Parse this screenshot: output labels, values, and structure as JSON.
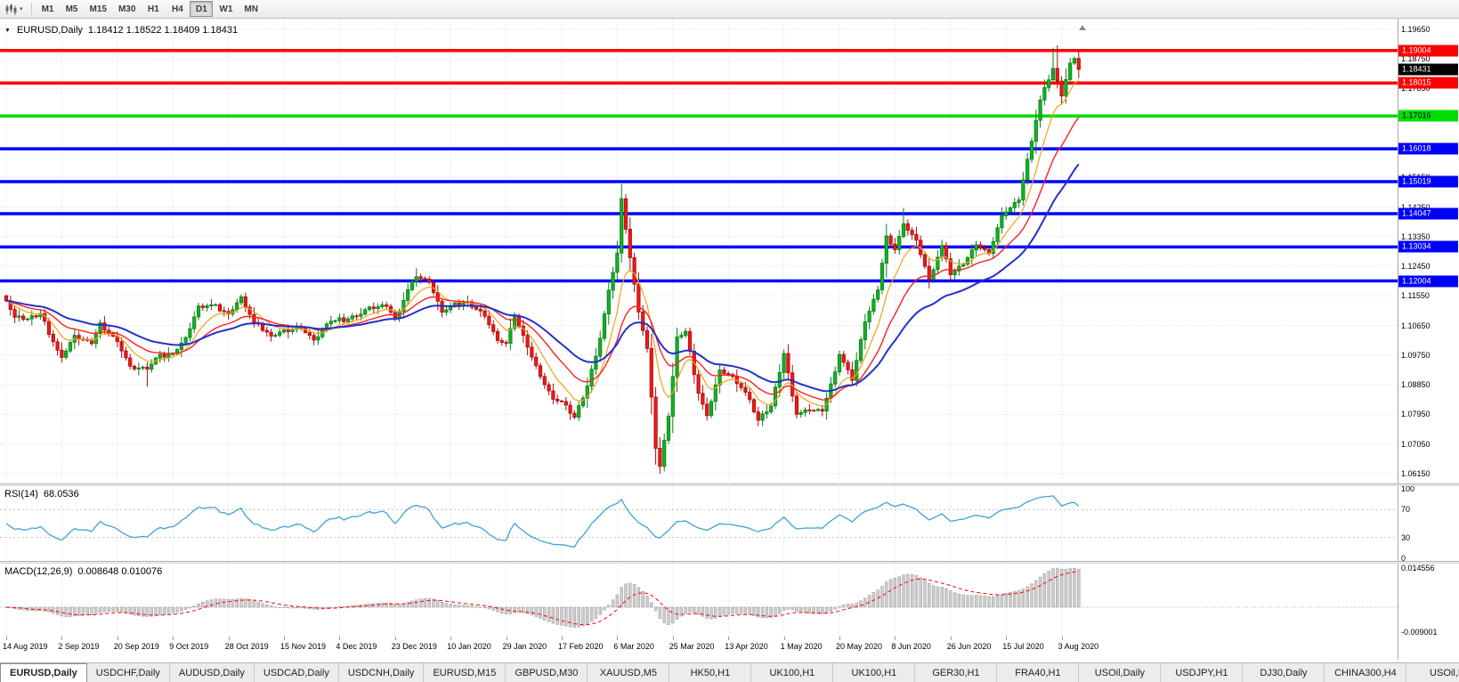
{
  "colors": {
    "up_candle": "#12b224",
    "up_candle_border": "#0a7d18",
    "down_candle": "#f01818",
    "down_candle_border": "#a80d0d",
    "grid": "#dcdcdc",
    "rsi_line": "#42a0d8",
    "rsi_level": "#c0c0c0",
    "macd_histogram": "#cccccc",
    "macd_histogram_border": "#8f8f8f",
    "macd_signal": "#ff0000"
  },
  "toolbar": {
    "timeframes": [
      "M1",
      "M5",
      "M15",
      "M30",
      "H1",
      "H4",
      "D1",
      "W1",
      "MN"
    ],
    "active": "D1",
    "dropdown_icon": "▾"
  },
  "main_chart": {
    "collapse_icon": "▼",
    "symbol_label": "EURUSD,Daily",
    "ohlc_label": "1.18412 1.18522 1.18409 1.18431"
  },
  "rsi_panel": {
    "name": "RSI(14)",
    "value": "68.0536",
    "axis_labels": [
      "100",
      "70",
      "30",
      "0"
    ],
    "axis_values": [
      100,
      70,
      30,
      0
    ],
    "level_lines": [
      70,
      30
    ]
  },
  "macd_panel": {
    "name": "MACD(12,26,9)",
    "values": "0.008648 0.010076",
    "axis_top": "0.014556",
    "axis_bottom": "-0.009001"
  },
  "tabs": [
    "EURUSD,Daily",
    "USDCHF,Daily",
    "AUDUSD,Daily",
    "USDCAD,Daily",
    "USDCNH,Daily",
    "EURUSD,M15",
    "GBPUSD,M30",
    "XAUUSD,M5",
    "HK50,H1",
    "UK100,H1",
    "UK100,H1",
    "GER30,H1",
    "FRA40,H1",
    "USOil,Daily",
    "USDJPY,H1",
    "DJ30,Daily",
    "CHINA300,H4",
    "USOil,D"
  ],
  "active_tab_index": 0,
  "chart_data": {
    "type": "candlestick",
    "symbol": "EURUSD",
    "period": "Daily",
    "bar_count": 252,
    "price_axis": {
      "top_label": 1.1965,
      "step": 0.009,
      "label_count": 16,
      "pane_max": 1.1997,
      "pane_min": 1.0585
    },
    "x_labels": [
      "14 Aug 2019",
      "2 Sep 2019",
      "20 Sep 2019",
      "9 Oct 2019",
      "28 Oct 2019",
      "15 Nov 2019",
      "4 Dec 2019",
      "23 Dec 2019",
      "10 Jan 2020",
      "29 Jan 2020",
      "17 Feb 2020",
      "6 Mar 2020",
      "25 Mar 2020",
      "13 Apr 2020",
      "1 May 2020",
      "20 May 2020",
      "8 Jun 2020",
      "26 Jun 2020",
      "15 Jul 2020",
      "3 Aug 2020"
    ],
    "x_label_bars": [
      0,
      13,
      26,
      39,
      52,
      65,
      78,
      91,
      104,
      117,
      130,
      143,
      156,
      169,
      182,
      195,
      208,
      221,
      234,
      247
    ],
    "close_anchors": [
      [
        0,
        1.114
      ],
      [
        2,
        1.109
      ],
      [
        5,
        1.1085
      ],
      [
        8,
        1.1101
      ],
      [
        12,
        1.099
      ],
      [
        13,
        1.0968
      ],
      [
        16,
        1.1035
      ],
      [
        20,
        1.101
      ],
      [
        22,
        1.1073
      ],
      [
        26,
        1.1016
      ],
      [
        29,
        1.0941
      ],
      [
        33,
        1.0932
      ],
      [
        35,
        1.0966
      ],
      [
        39,
        1.0979
      ],
      [
        42,
        1.1028
      ],
      [
        45,
        1.1124
      ],
      [
        48,
        1.1128
      ],
      [
        52,
        1.11
      ],
      [
        55,
        1.1152
      ],
      [
        58,
        1.1074
      ],
      [
        62,
        1.1033
      ],
      [
        65,
        1.1051
      ],
      [
        69,
        1.1058
      ],
      [
        72,
        1.1021
      ],
      [
        76,
        1.1078
      ],
      [
        82,
        1.1093
      ],
      [
        85,
        1.1121
      ],
      [
        89,
        1.1123
      ],
      [
        91,
        1.1089
      ],
      [
        95,
        1.1199
      ],
      [
        96,
        1.1213
      ],
      [
        99,
        1.1196
      ],
      [
        102,
        1.1105
      ],
      [
        104,
        1.1122
      ],
      [
        108,
        1.1136
      ],
      [
        112,
        1.1093
      ],
      [
        115,
        1.1019
      ],
      [
        117,
        1.1011
      ],
      [
        119,
        1.1094
      ],
      [
        122,
        1.0999
      ],
      [
        125,
        1.091
      ],
      [
        128,
        1.0841
      ],
      [
        130,
        1.0834
      ],
      [
        133,
        1.0786
      ],
      [
        136,
        1.0881
      ],
      [
        139,
        1.1026
      ],
      [
        141,
        1.1172
      ],
      [
        143,
        1.1285
      ],
      [
        144,
        1.145
      ],
      [
        146,
        1.1271
      ],
      [
        148,
        1.1106
      ],
      [
        150,
        1.0995
      ],
      [
        152,
        1.0692
      ],
      [
        153,
        1.0637
      ],
      [
        155,
        1.0789
      ],
      [
        157,
        1.103
      ],
      [
        159,
        1.1047
      ],
      [
        162,
        1.0859
      ],
      [
        164,
        1.0791
      ],
      [
        167,
        1.093
      ],
      [
        170,
        1.091
      ],
      [
        173,
        1.0862
      ],
      [
        176,
        1.0777
      ],
      [
        179,
        1.0821
      ],
      [
        182,
        1.098
      ],
      [
        185,
        1.0795
      ],
      [
        188,
        1.0807
      ],
      [
        191,
        1.0805
      ],
      [
        194,
        1.0924
      ],
      [
        195,
        1.0977
      ],
      [
        198,
        1.0898
      ],
      [
        201,
        1.1076
      ],
      [
        204,
        1.1173
      ],
      [
        206,
        1.1337
      ],
      [
        208,
        1.1295
      ],
      [
        210,
        1.1374
      ],
      [
        213,
        1.1324
      ],
      [
        216,
        1.1206
      ],
      [
        219,
        1.1308
      ],
      [
        221,
        1.1219
      ],
      [
        224,
        1.1251
      ],
      [
        227,
        1.131
      ],
      [
        230,
        1.1284
      ],
      [
        233,
        1.1398
      ],
      [
        234,
        1.141
      ],
      [
        237,
        1.1446
      ],
      [
        239,
        1.157
      ],
      [
        242,
        1.175
      ],
      [
        245,
        1.1846
      ],
      [
        247,
        1.1762
      ],
      [
        249,
        1.1862
      ],
      [
        250,
        1.1876
      ],
      [
        251,
        1.1843
      ]
    ],
    "wick_overrides": [
      [
        33,
        "low",
        1.0879
      ],
      [
        96,
        "high",
        1.1239
      ],
      [
        144,
        "high",
        1.1495
      ],
      [
        153,
        "low",
        1.0636
      ],
      [
        210,
        "high",
        1.1422
      ],
      [
        245,
        "high",
        1.1909
      ],
      [
        246,
        "high",
        1.1916
      ]
    ],
    "horizontal_lines": [
      {
        "price": 1.19004,
        "label": "1.19004",
        "color": "#ff0000",
        "text": "#ffffff"
      },
      {
        "price": 1.18015,
        "label": "1.18015",
        "color": "#ff0000",
        "text": "#ffffff"
      },
      {
        "price": 1.17016,
        "label": "1.17016",
        "color": "#00dd00",
        "text": "#000000"
      },
      {
        "price": 1.16018,
        "label": "1.16018",
        "color": "#0000ff",
        "text": "#ffffff"
      },
      {
        "price": 1.15019,
        "label": "1.15019",
        "color": "#0000ff",
        "text": "#ffffff"
      },
      {
        "price": 1.14047,
        "label": "1.14047",
        "color": "#0000ff",
        "text": "#ffffff"
      },
      {
        "price": 1.13034,
        "label": "1.13034",
        "color": "#0000ff",
        "text": "#ffffff"
      },
      {
        "price": 1.12004,
        "label": "1.12004",
        "color": "#0000ff",
        "text": "#ffffff"
      }
    ],
    "current_price": {
      "price": 1.18431,
      "label": "1.18431",
      "bg": "#000000",
      "text": "#ffffff"
    },
    "moving_averages": [
      {
        "period": 8,
        "color": "#eea31a",
        "width": 1.2
      },
      {
        "period": 18,
        "color": "#ff2020",
        "width": 1.4
      },
      {
        "period": 34,
        "color": "#2430c8",
        "width": 2
      }
    ],
    "rsi": {
      "period": 14,
      "last": 68.0536
    },
    "macd": {
      "fast": 12,
      "slow": 26,
      "signal": 9,
      "last_main": 0.008648,
      "last_signal": 0.010076,
      "scale_max": 0.0152,
      "scale_min": -0.0098
    }
  }
}
